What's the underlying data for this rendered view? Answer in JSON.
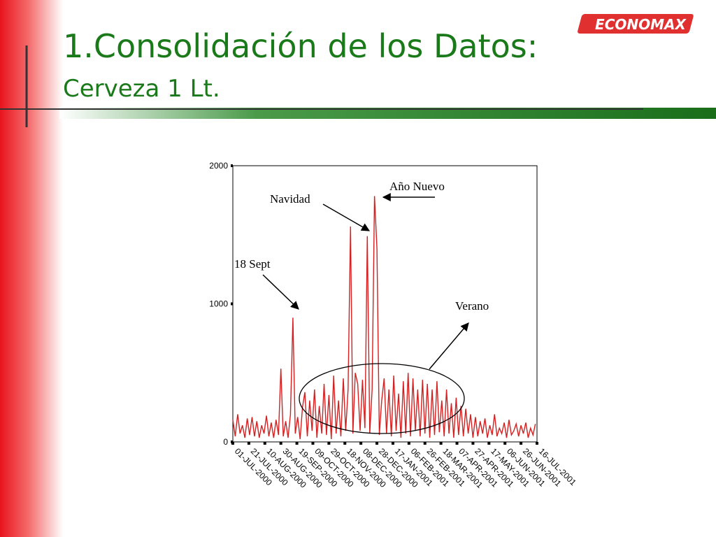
{
  "slide": {
    "title": "1.Consolidación de los Datos:",
    "subtitle": "Cerveza 1 Lt.",
    "logo": "ECONOMAX"
  },
  "chart_data": {
    "type": "line",
    "color": "#d42020",
    "x": [
      0,
      3,
      6,
      9,
      12,
      15,
      18,
      21,
      24,
      27,
      30,
      33,
      36,
      39,
      42,
      45,
      48,
      51,
      54,
      57,
      60,
      63,
      66,
      69,
      72,
      75,
      78,
      81,
      84,
      87,
      90,
      93,
      96,
      99,
      102,
      105,
      108,
      111,
      114,
      117,
      120,
      123,
      126,
      129,
      132,
      135,
      138,
      141,
      144,
      147,
      150,
      153,
      156,
      159,
      162,
      165,
      168,
      171,
      174,
      177,
      180,
      183,
      186,
      189,
      192,
      195,
      198,
      201,
      204,
      207,
      210,
      213,
      216,
      219,
      222,
      225,
      228,
      231,
      234,
      237,
      240,
      243,
      246,
      249,
      252,
      255,
      258,
      261,
      264,
      267,
      270,
      273,
      276,
      279,
      282,
      285,
      288,
      291,
      294,
      297,
      300,
      303,
      306,
      309,
      312,
      315,
      318,
      321,
      324,
      327,
      330,
      333,
      336,
      339,
      342,
      345,
      348,
      351,
      354,
      357,
      360,
      363,
      366,
      369,
      372,
      375,
      378
    ],
    "values": [
      160,
      40,
      200,
      60,
      120,
      30,
      170,
      50,
      180,
      40,
      150,
      30,
      120,
      60,
      190,
      40,
      140,
      30,
      160,
      50,
      530,
      40,
      150,
      30,
      200,
      900,
      60,
      180,
      20,
      250,
      360,
      40,
      300,
      80,
      380,
      30,
      260,
      60,
      420,
      50,
      340,
      20,
      480,
      60,
      300,
      40,
      460,
      80,
      380,
      1560,
      60,
      500,
      420,
      80,
      450,
      100,
      1490,
      60,
      380,
      1780,
      1400,
      50,
      300,
      460,
      60,
      380,
      40,
      480,
      80,
      350,
      30,
      440,
      60,
      500,
      40,
      460,
      80,
      380,
      40,
      450,
      60,
      420,
      30,
      380,
      50,
      440,
      70,
      300,
      40,
      380,
      60,
      280,
      30,
      320,
      50,
      260,
      40,
      240,
      60,
      200,
      30,
      180,
      40,
      150,
      60,
      170,
      30,
      120,
      50,
      200,
      40,
      100,
      60,
      140,
      30,
      160,
      50,
      80,
      130,
      40,
      120,
      60,
      140,
      30,
      100,
      50,
      130
    ],
    "xlim": [
      0,
      380
    ],
    "xticks": [
      {
        "value": 0,
        "label": "01-JUL-2000"
      },
      {
        "value": 20,
        "label": "21-JUL-2000"
      },
      {
        "value": 40,
        "label": "10-AUG-2000"
      },
      {
        "value": 60,
        "label": "30-AUG-2000"
      },
      {
        "value": 80,
        "label": "19-SEP-2000"
      },
      {
        "value": 100,
        "label": "09-OCT-2000"
      },
      {
        "value": 120,
        "label": "29-OCT-2000"
      },
      {
        "value": 140,
        "label": "18-NOV-2000"
      },
      {
        "value": 160,
        "label": "08-DEC-2000"
      },
      {
        "value": 180,
        "label": "28-DEC-2000"
      },
      {
        "value": 200,
        "label": "17-JAN-2001"
      },
      {
        "value": 220,
        "label": "06-FEB-2001"
      },
      {
        "value": 240,
        "label": "26-FEB-2001"
      },
      {
        "value": 260,
        "label": "18-MAR-2001"
      },
      {
        "value": 280,
        "label": "07-APR-2001"
      },
      {
        "value": 300,
        "label": "27-APR-2001"
      },
      {
        "value": 320,
        "label": "17-MAY-2001"
      },
      {
        "value": 340,
        "label": "06-JUN-2001"
      },
      {
        "value": 360,
        "label": "26-JUN-2001"
      },
      {
        "value": 380,
        "label": "16-JUL-2001"
      }
    ],
    "ylim": [
      0,
      2000
    ],
    "yticks": [
      0,
      1000,
      2000
    ],
    "annotations": [
      "Año Nuevo",
      "Navidad",
      "18 Sept",
      "Verano"
    ]
  }
}
